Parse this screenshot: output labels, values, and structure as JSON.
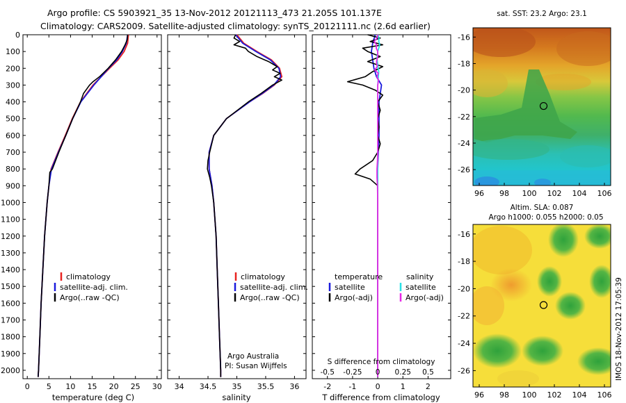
{
  "header": {
    "line1": "Argo profile: CS 5903921_35 13-Nov-2012 20121113_473 21.205S 101.137E",
    "line2": "Climatology: CARS2009. Satellite-adjusted climatology: synTS_20121111.nc (2.6d earlier)"
  },
  "credit": "IMOS 18-Nov-2012 17:05:39",
  "colors": {
    "climatology": "#e8221f",
    "satellite": "#1a1adc",
    "argo": "#000000",
    "sal_satellite": "#29e0e6",
    "sal_argo": "#e627e6"
  },
  "chart_data": [
    {
      "id": "temperature",
      "type": "line",
      "xlabel": "temperature (deg C)",
      "ylabel": "",
      "xlim": [
        -1,
        31
      ],
      "ylim": [
        2050,
        0
      ],
      "xticks": [
        0,
        5,
        10,
        15,
        20,
        25,
        30
      ],
      "yticks": [
        0,
        100,
        200,
        300,
        400,
        500,
        600,
        700,
        800,
        900,
        1000,
        1100,
        1200,
        1300,
        1400,
        1500,
        1600,
        1700,
        1800,
        1900,
        2000
      ],
      "legend": [
        "climatology",
        "satellite-adj. clim.",
        "Argo(..raw -QC)"
      ],
      "legend_position": "lower-center",
      "series": [
        {
          "name": "climatology",
          "color_key": "climatology",
          "depth": [
            0,
            50,
            100,
            150,
            200,
            300,
            400,
            500,
            600,
            700,
            800,
            900,
            1000,
            1200,
            1400,
            1600,
            1800,
            2000,
            2040
          ],
          "values": [
            23.4,
            23.2,
            22.4,
            21.0,
            19.0,
            15.2,
            12.3,
            10.4,
            8.8,
            7.1,
            5.5,
            5.0,
            4.6,
            4.0,
            3.6,
            3.2,
            2.9,
            2.6,
            2.5
          ]
        },
        {
          "name": "satellite-adj. clim.",
          "color_key": "satellite",
          "depth": [
            0,
            50,
            100,
            150,
            200,
            300,
            400,
            500,
            600,
            700,
            800,
            900,
            1000,
            1200,
            1400,
            1600,
            1800,
            2000,
            2040
          ],
          "values": [
            23.2,
            22.9,
            22.0,
            20.7,
            18.8,
            15.4,
            12.4,
            10.5,
            8.9,
            7.2,
            5.6,
            5.0,
            4.6,
            4.0,
            3.6,
            3.2,
            2.9,
            2.6,
            2.5
          ]
        },
        {
          "name": "Argo(..raw -QC)",
          "color_key": "argo",
          "depth": [
            0,
            30,
            60,
            100,
            150,
            200,
            250,
            280,
            300,
            350,
            400,
            500,
            600,
            700,
            800,
            820,
            900,
            1000,
            1200,
            1400,
            1600,
            1800,
            2000,
            2040
          ],
          "values": [
            23.2,
            23.1,
            22.6,
            21.8,
            20.4,
            18.7,
            16.7,
            15.2,
            14.4,
            13.0,
            12.3,
            10.5,
            8.9,
            7.3,
            5.8,
            5.2,
            5.0,
            4.6,
            4.0,
            3.6,
            3.2,
            2.9,
            2.6,
            2.5
          ]
        }
      ]
    },
    {
      "id": "salinity",
      "type": "line",
      "xlabel": "salinity",
      "ylabel": "",
      "xlim": [
        33.8,
        36.2
      ],
      "ylim": [
        2050,
        0
      ],
      "xticks": [
        34,
        34.5,
        35,
        35.5,
        36
      ],
      "legend": [
        "climatology",
        "satellite-adj. clim.",
        "Argo(..raw -QC)"
      ],
      "legend_position": "lower-center",
      "annotation": [
        "Argo Australia",
        "PI: Susan Wijffels"
      ],
      "series": [
        {
          "name": "climatology",
          "color_key": "climatology",
          "depth": [
            0,
            50,
            100,
            150,
            200,
            250,
            300,
            350,
            400,
            500,
            600,
            700,
            800,
            900,
            1000,
            1200,
            1400,
            1600,
            1800,
            2000,
            2040
          ],
          "values": [
            35.0,
            35.12,
            35.35,
            35.6,
            35.74,
            35.78,
            35.65,
            35.45,
            35.22,
            34.82,
            34.6,
            34.52,
            34.52,
            34.57,
            34.6,
            34.64,
            34.66,
            34.68,
            34.7,
            34.72,
            34.72
          ]
        },
        {
          "name": "satellite-adj. clim.",
          "color_key": "satellite",
          "depth": [
            0,
            50,
            100,
            150,
            200,
            250,
            300,
            350,
            400,
            500,
            600,
            700,
            800,
            900,
            1000,
            1200,
            1400,
            1600,
            1800,
            2000,
            2040
          ],
          "values": [
            34.98,
            35.1,
            35.33,
            35.58,
            35.73,
            35.76,
            35.64,
            35.44,
            35.22,
            34.82,
            34.6,
            34.52,
            34.52,
            34.57,
            34.6,
            34.64,
            34.66,
            34.68,
            34.7,
            34.72,
            34.72
          ]
        },
        {
          "name": "Argo(..raw -QC)",
          "color_key": "argo",
          "depth": [
            0,
            20,
            40,
            60,
            80,
            100,
            130,
            160,
            190,
            210,
            230,
            250,
            270,
            300,
            350,
            400,
            500,
            600,
            700,
            750,
            800,
            850,
            900,
            1000,
            1200,
            1400,
            1600,
            1800,
            2000,
            2040
          ],
          "values": [
            34.98,
            34.95,
            35.05,
            34.95,
            35.15,
            35.2,
            35.35,
            35.55,
            35.7,
            35.62,
            35.75,
            35.65,
            35.78,
            35.62,
            35.42,
            35.2,
            34.82,
            34.6,
            34.53,
            34.5,
            34.49,
            34.53,
            34.56,
            34.6,
            34.64,
            34.66,
            34.68,
            34.7,
            34.72,
            34.72
          ]
        }
      ]
    },
    {
      "id": "difference",
      "type": "line",
      "xlabel": "T difference from climatology",
      "top_label": "S difference from climatology",
      "xlim": [
        -2.6,
        2.9
      ],
      "ylim": [
        2050,
        0
      ],
      "xticks": [
        -2,
        -1,
        0,
        1,
        2
      ],
      "s_xticks": [
        "-0.5",
        "-0.25",
        "0",
        "0.25",
        "0.5"
      ],
      "legend_title_left": "temperature",
      "legend_title_right": "salinity",
      "legend_left": [
        "satellite",
        "Argo(-adj)"
      ],
      "legend_right": [
        "satellite",
        "Argo(-adj)"
      ],
      "series": [
        {
          "name": "T satellite",
          "color_key": "satellite",
          "depth": [
            0,
            50,
            100,
            150,
            200,
            250,
            300,
            400,
            500,
            600,
            700,
            800,
            1000,
            1500,
            2040
          ],
          "values": [
            -0.1,
            -0.2,
            -0.25,
            -0.2,
            -0.15,
            -0.05,
            0.15,
            0.05,
            0.05,
            0.05,
            0.02,
            0.0,
            0.0,
            0.0,
            0.0
          ]
        },
        {
          "name": "T Argo(-adj)",
          "color_key": "argo",
          "depth": [
            0,
            20,
            40,
            60,
            80,
            100,
            130,
            160,
            190,
            220,
            250,
            280,
            300,
            330,
            360,
            400,
            450,
            500,
            550,
            600,
            650,
            700,
            750,
            780,
            800,
            830,
            860,
            900,
            1000,
            1200,
            1500,
            1800,
            2040
          ],
          "values": [
            -0.4,
            0.1,
            -0.3,
            0.2,
            -0.6,
            -0.4,
            0.1,
            -0.4,
            0.2,
            -0.2,
            -0.5,
            -1.2,
            -0.6,
            -0.1,
            0.2,
            0.0,
            0.1,
            0.0,
            0.05,
            0.0,
            0.1,
            0.0,
            -0.2,
            -0.5,
            -0.7,
            -0.9,
            -0.3,
            0.0,
            0.0,
            0.0,
            0.0,
            0.0,
            0.0
          ]
        },
        {
          "name": "S satellite",
          "color_key": "sal_satellite",
          "depth": [
            0,
            20,
            40,
            60,
            80,
            100,
            140,
            180,
            220,
            260,
            300,
            350,
            400,
            500,
            600,
            800,
            1000,
            1500,
            2040
          ],
          "values": [
            0.0,
            0.05,
            0.04,
            0.08,
            0.04,
            0.0,
            -0.03,
            0.0,
            0.04,
            0.02,
            0.0,
            0.0,
            0.0,
            0.0,
            0.0,
            0.0,
            0.0,
            0.0,
            0.0
          ]
        },
        {
          "name": "S Argo(-adj)",
          "color_key": "sal_argo",
          "depth": [
            0,
            20,
            40,
            60,
            80,
            100,
            130,
            160,
            190,
            210,
            230,
            250,
            270,
            300,
            350,
            400,
            500,
            600,
            700,
            750,
            800,
            850,
            900,
            1000,
            1200,
            1500,
            1800,
            2040
          ],
          "values": [
            0.0,
            -0.03,
            -0.14,
            -0.05,
            -0.06,
            0.0,
            0.0,
            -0.05,
            -0.02,
            -0.12,
            0.02,
            -0.03,
            0.03,
            0.0,
            0.0,
            0.0,
            0.0,
            0.0,
            0.0,
            -0.01,
            -0.03,
            -0.03,
            -0.01,
            0.0,
            0.0,
            0.0,
            0.0,
            0.0
          ]
        }
      ]
    },
    {
      "id": "sst_map",
      "type": "heatmap",
      "title": "sat. SST: 23.2 Argo: 23.1",
      "xlim": [
        95.5,
        106.5
      ],
      "ylim": [
        -27.2,
        -15.3
      ],
      "xticks": [
        96,
        98,
        100,
        102,
        104,
        106
      ],
      "yticks": [
        -16,
        -18,
        -20,
        -22,
        -24,
        -26
      ],
      "marker": [
        101.14,
        -21.2
      ]
    },
    {
      "id": "sla_map",
      "type": "heatmap",
      "title_line1": "Altim. SLA: 0.087",
      "title_line2": "Argo h1000: 0.055 h2000: 0.05",
      "xlim": [
        95.5,
        106.5
      ],
      "ylim": [
        -27.2,
        -15.3
      ],
      "xticks": [
        96,
        98,
        100,
        102,
        104,
        106
      ],
      "yticks": [
        -16,
        -18,
        -20,
        -22,
        -24,
        -26
      ],
      "marker": [
        101.14,
        -21.2
      ]
    }
  ]
}
